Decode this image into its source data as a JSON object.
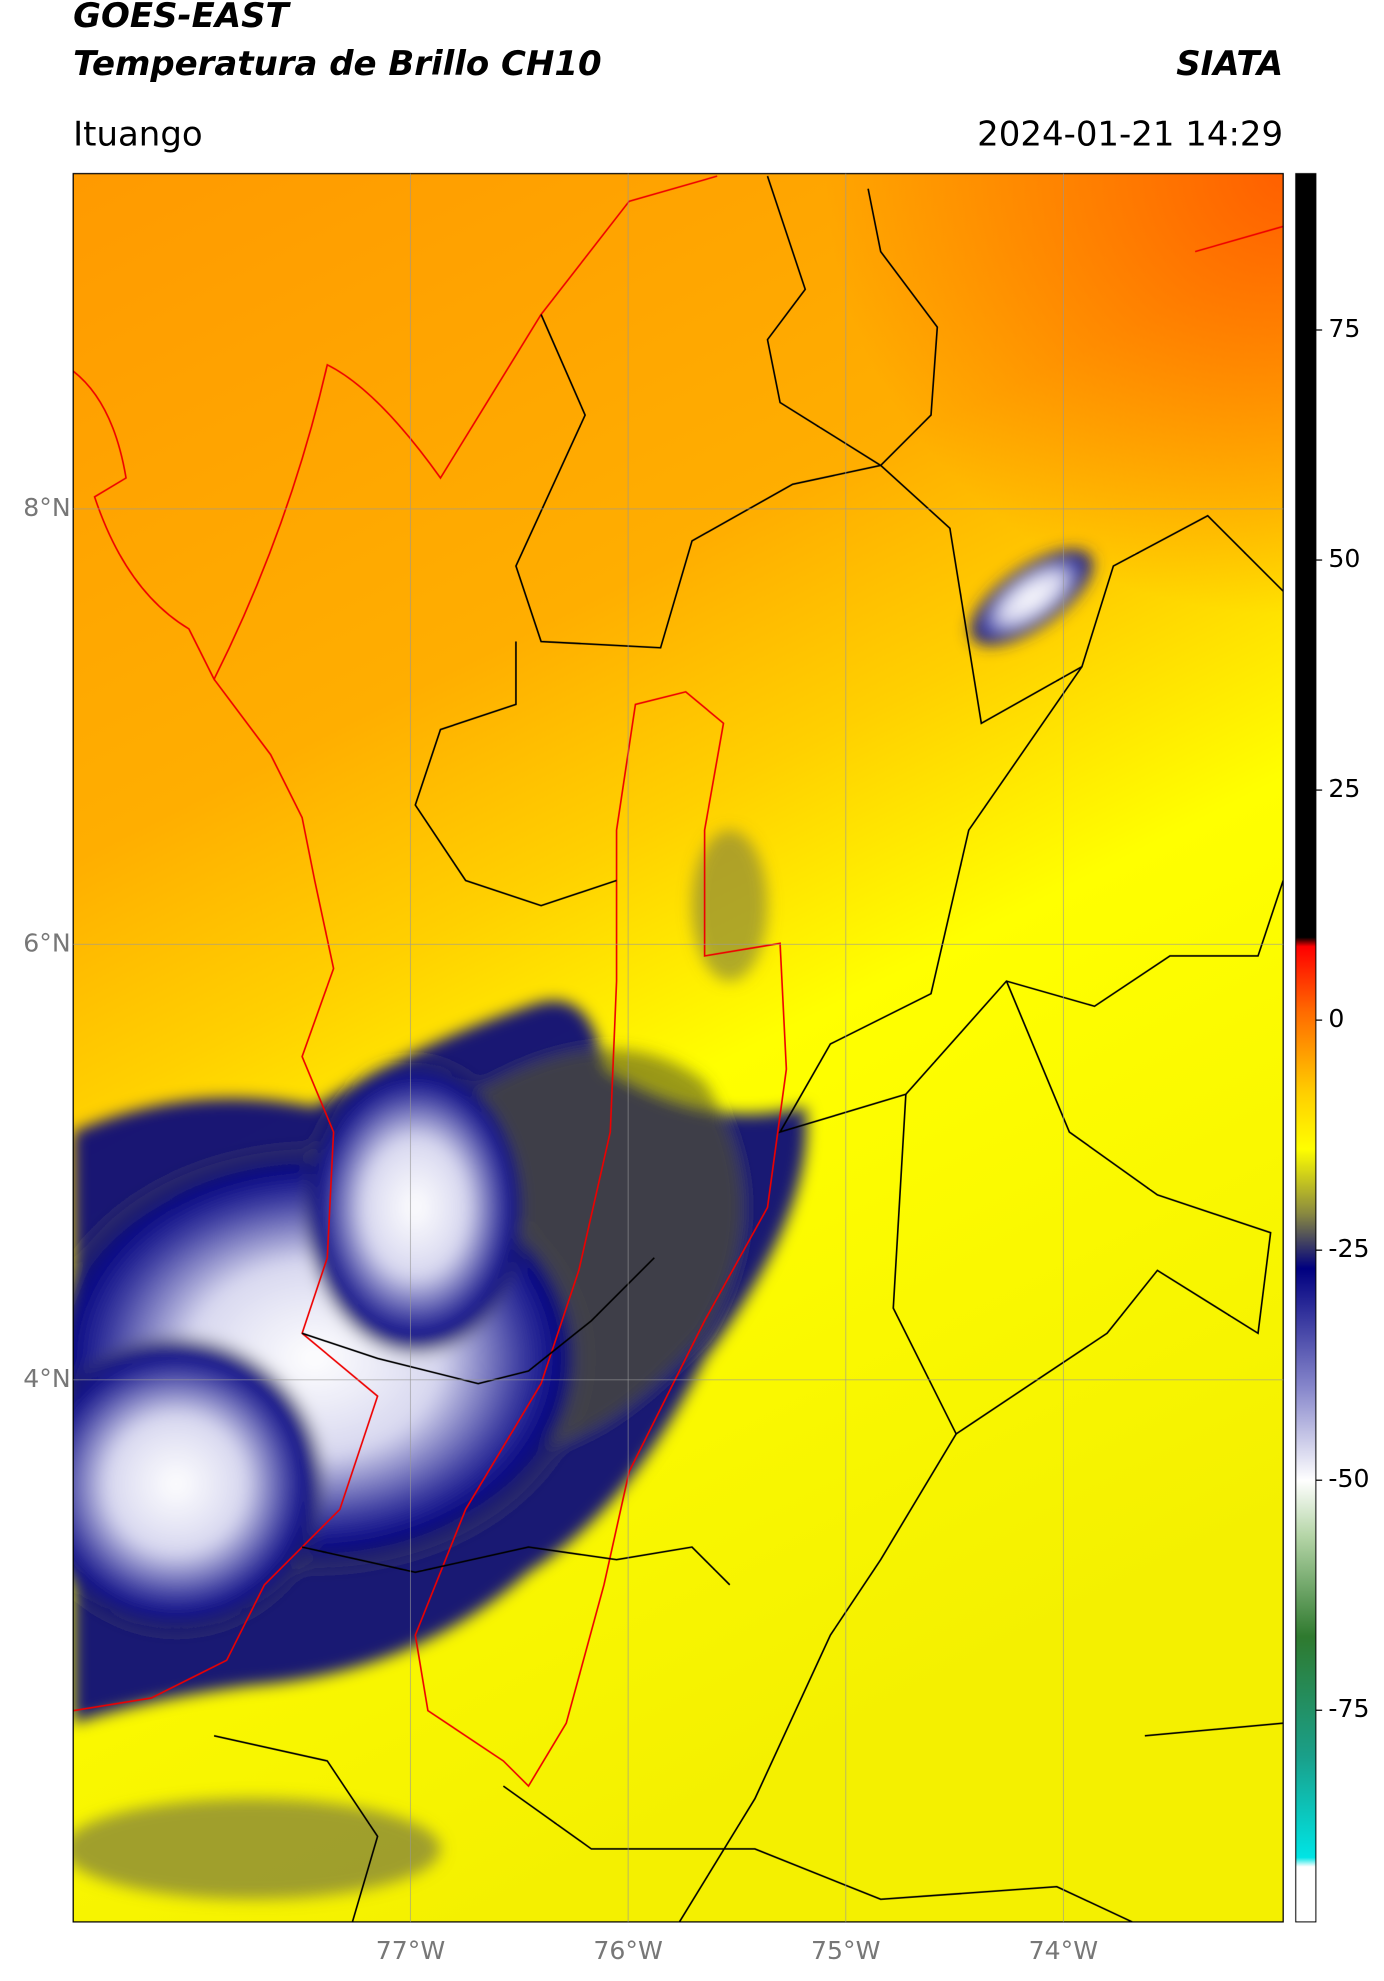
{
  "header": {
    "title": "GOES-EAST",
    "subtitle": "Temperatura de Brillo CH10",
    "brand": "SIATA",
    "location": "Ituango",
    "datetime": "2024-01-21 14:29"
  },
  "map": {
    "lat_range": [
      1.51,
      9.54
    ],
    "lon_range": [
      -78.55,
      -72.99
    ],
    "lat_ticks": [
      {
        "value": 8,
        "label": "8°N"
      },
      {
        "value": 6,
        "label": "6°N"
      },
      {
        "value": 4,
        "label": "4°N"
      }
    ],
    "lon_ticks": [
      {
        "value": -77,
        "label": "77°W"
      },
      {
        "value": -76,
        "label": "76°W"
      },
      {
        "value": -75,
        "label": "75°W"
      },
      {
        "value": -74,
        "label": "74°W"
      }
    ]
  },
  "colorbar": {
    "range": [
      -98,
      92
    ],
    "ticks": [
      75,
      50,
      25,
      0,
      -25,
      -50,
      -75
    ],
    "colormap": [
      {
        "value": 92,
        "color": "#000000"
      },
      {
        "value": 9,
        "color": "#000000"
      },
      {
        "value": 8,
        "color": "#ff0000"
      },
      {
        "value": 1,
        "color": "#ff6a00"
      },
      {
        "value": -8,
        "color": "#ffd000"
      },
      {
        "value": -14,
        "color": "#ffff00"
      },
      {
        "value": -21,
        "color": "#8a8a40"
      },
      {
        "value": -27,
        "color": "#000080"
      },
      {
        "value": -40,
        "color": "#8888cc"
      },
      {
        "value": -50,
        "color": "#ffffff"
      },
      {
        "value": -56,
        "color": "#b6d6a8"
      },
      {
        "value": -67,
        "color": "#2f7a2f"
      },
      {
        "value": -80,
        "color": "#1aa08a"
      },
      {
        "value": -91,
        "color": "#00e5e5"
      },
      {
        "value": -92,
        "color": "#ffffff"
      },
      {
        "value": -98,
        "color": "#ffffff"
      }
    ]
  }
}
